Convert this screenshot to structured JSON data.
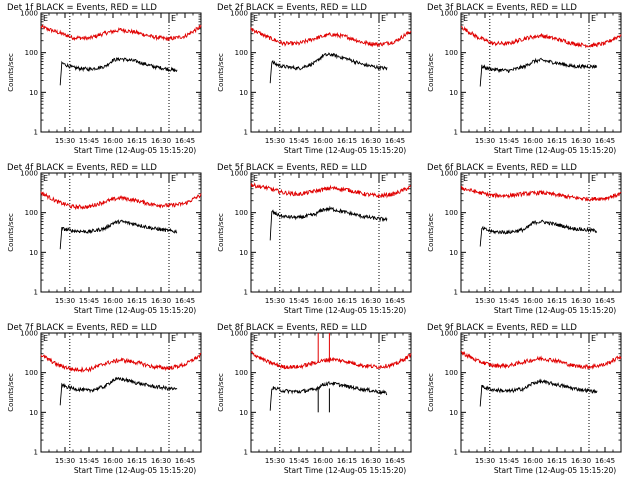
{
  "colors": {
    "events": "#000000",
    "lld": "#e00000",
    "axes": "#000000",
    "marker": "#000000"
  },
  "chart_data": [
    {
      "type": "line",
      "title": "Det 1f BLACK = Events, RED = LLD",
      "xlabel": "Start Time (12-Aug-05 15:15:20)",
      "ylabel": "Counts/sec",
      "yscale": "log",
      "ylim": [
        1,
        1000
      ],
      "xlim": [
        "15:15",
        "16:55"
      ],
      "x_ticks": [
        "15:30",
        "15:45",
        "16:00",
        "16:15",
        "16:30",
        "16:45"
      ],
      "y_ticks": [
        "1",
        "10",
        "100",
        "1000"
      ],
      "markers": [
        {
          "label": "E",
          "x": "15:15"
        },
        {
          "label": "E",
          "x": "16:35"
        }
      ],
      "vlines": [
        "15:33",
        "16:35"
      ],
      "series": [
        {
          "color": "red",
          "x": [
            "15:15",
            "15:25",
            "15:35",
            "15:45",
            "15:55",
            "16:05",
            "16:15",
            "16:25",
            "16:35",
            "16:45",
            "16:55"
          ],
          "y": [
            450,
            330,
            240,
            230,
            310,
            380,
            320,
            250,
            220,
            260,
            450
          ]
        },
        {
          "color": "black",
          "x": [
            "15:27",
            "15:28",
            "15:30",
            "15:35",
            "15:45",
            "15:55",
            "16:00",
            "16:05",
            "16:15",
            "16:25",
            "16:35",
            "16:40"
          ],
          "y": [
            15,
            55,
            50,
            42,
            38,
            45,
            65,
            70,
            60,
            45,
            38,
            35
          ]
        }
      ]
    },
    {
      "type": "line",
      "title": "Det 2f BLACK = Events, RED = LLD",
      "xlabel": "Start Time (12-Aug-05 15:15:20)",
      "ylabel": "Counts/sec",
      "yscale": "log",
      "ylim": [
        1,
        1000
      ],
      "xlim": [
        "15:15",
        "16:55"
      ],
      "x_ticks": [
        "15:30",
        "15:45",
        "16:00",
        "16:15",
        "16:30",
        "16:45"
      ],
      "y_ticks": [
        "1",
        "10",
        "100",
        "1000"
      ],
      "markers": [
        {
          "label": "E",
          "x": "15:15"
        },
        {
          "label": "E",
          "x": "16:35"
        }
      ],
      "vlines": [
        "15:33",
        "16:35"
      ],
      "series": [
        {
          "color": "red",
          "x": [
            "15:15",
            "15:25",
            "15:35",
            "15:45",
            "15:55",
            "16:05",
            "16:15",
            "16:25",
            "16:35",
            "16:45",
            "16:55"
          ],
          "y": [
            400,
            250,
            170,
            170,
            230,
            290,
            250,
            180,
            160,
            190,
            350
          ]
        },
        {
          "color": "black",
          "x": [
            "15:27",
            "15:28",
            "15:30",
            "15:35",
            "15:45",
            "15:55",
            "16:00",
            "16:05",
            "16:15",
            "16:25",
            "16:35",
            "16:40"
          ],
          "y": [
            17,
            60,
            52,
            45,
            40,
            55,
            85,
            90,
            70,
            50,
            42,
            40
          ]
        }
      ]
    },
    {
      "type": "line",
      "title": "Det 3f BLACK = Events, RED = LLD",
      "xlabel": "Start Time (12-Aug-05 15:15:20)",
      "ylabel": "Counts/sec",
      "yscale": "log",
      "ylim": [
        1,
        1000
      ],
      "xlim": [
        "15:15",
        "16:55"
      ],
      "x_ticks": [
        "15:30",
        "15:45",
        "16:00",
        "16:15",
        "16:30",
        "16:45"
      ],
      "y_ticks": [
        "1",
        "10",
        "100",
        "1000"
      ],
      "markers": [
        {
          "label": "E",
          "x": "15:15"
        },
        {
          "label": "E",
          "x": "16:35"
        }
      ],
      "vlines": [
        "15:33",
        "16:35"
      ],
      "series": [
        {
          "color": "red",
          "x": [
            "15:15",
            "15:25",
            "15:35",
            "15:45",
            "15:55",
            "16:05",
            "16:15",
            "16:25",
            "16:35",
            "16:45",
            "16:55"
          ],
          "y": [
            450,
            250,
            170,
            170,
            230,
            270,
            220,
            170,
            150,
            170,
            280
          ]
        },
        {
          "color": "black",
          "x": [
            "15:27",
            "15:28",
            "15:30",
            "15:35",
            "15:45",
            "15:55",
            "16:00",
            "16:05",
            "16:15",
            "16:25",
            "16:35",
            "16:40"
          ],
          "y": [
            14,
            45,
            42,
            38,
            35,
            45,
            60,
            65,
            55,
            45,
            45,
            45
          ]
        }
      ]
    },
    {
      "type": "line",
      "title": "Det 4f BLACK = Events, RED = LLD",
      "xlabel": "Start Time (12-Aug-05 15:15:20)",
      "ylabel": "Counts/sec",
      "yscale": "log",
      "ylim": [
        1,
        1000
      ],
      "xlim": [
        "15:15",
        "16:55"
      ],
      "x_ticks": [
        "15:30",
        "15:45",
        "16:00",
        "16:15",
        "16:30",
        "16:45"
      ],
      "y_ticks": [
        "1",
        "10",
        "100",
        "1000"
      ],
      "markers": [
        {
          "label": "E",
          "x": "15:15"
        },
        {
          "label": "E",
          "x": "16:35"
        }
      ],
      "vlines": [
        "15:33",
        "16:35"
      ],
      "series": [
        {
          "color": "red",
          "x": [
            "15:15",
            "15:25",
            "15:35",
            "15:45",
            "15:55",
            "16:05",
            "16:15",
            "16:25",
            "16:35",
            "16:45",
            "16:55"
          ],
          "y": [
            320,
            190,
            140,
            140,
            190,
            240,
            200,
            160,
            150,
            170,
            280
          ]
        },
        {
          "color": "black",
          "x": [
            "15:27",
            "15:28",
            "15:30",
            "15:35",
            "15:45",
            "15:55",
            "16:00",
            "16:05",
            "16:15",
            "16:25",
            "16:35",
            "16:40"
          ],
          "y": [
            12,
            40,
            38,
            35,
            33,
            40,
            55,
            60,
            50,
            40,
            35,
            33
          ]
        }
      ]
    },
    {
      "type": "line",
      "title": "Det 5f BLACK = Events, RED = LLD",
      "xlabel": "Start Time (12-Aug-05 15:15:20)",
      "ylabel": "Counts/sec",
      "yscale": "log",
      "ylim": [
        1,
        1000
      ],
      "xlim": [
        "15:15",
        "16:55"
      ],
      "x_ticks": [
        "15:30",
        "15:45",
        "16:00",
        "16:15",
        "16:30",
        "16:45"
      ],
      "y_ticks": [
        "1",
        "10",
        "100",
        "1000"
      ],
      "markers": [
        {
          "label": "E",
          "x": "15:15"
        },
        {
          "label": "E",
          "x": "16:35"
        }
      ],
      "vlines": [
        "15:33",
        "16:35"
      ],
      "series": [
        {
          "color": "red",
          "x": [
            "15:15",
            "15:25",
            "15:35",
            "15:45",
            "15:55",
            "16:05",
            "16:15",
            "16:25",
            "16:35",
            "16:45",
            "16:55"
          ],
          "y": [
            500,
            420,
            320,
            290,
            350,
            420,
            380,
            300,
            260,
            300,
            450
          ]
        },
        {
          "color": "black",
          "x": [
            "15:27",
            "15:28",
            "15:30",
            "15:35",
            "15:45",
            "15:55",
            "16:00",
            "16:05",
            "16:15",
            "16:25",
            "16:35",
            "16:40"
          ],
          "y": [
            20,
            110,
            95,
            80,
            75,
            90,
            120,
            125,
            100,
            80,
            70,
            68
          ]
        }
      ]
    },
    {
      "type": "line",
      "title": "Det 6f BLACK = Events, RED = LLD",
      "xlabel": "Start Time (12-Aug-05 15:15:20)",
      "ylabel": "Counts/sec",
      "yscale": "log",
      "ylim": [
        1,
        1000
      ],
      "xlim": [
        "15:15",
        "16:55"
      ],
      "x_ticks": [
        "15:30",
        "15:45",
        "16:00",
        "16:15",
        "16:30",
        "16:45"
      ],
      "y_ticks": [
        "1",
        "10",
        "100",
        "1000"
      ],
      "markers": [
        {
          "label": "E",
          "x": "15:15"
        },
        {
          "label": "E",
          "x": "16:35"
        }
      ],
      "vlines": [
        "15:33",
        "16:35"
      ],
      "series": [
        {
          "color": "red",
          "x": [
            "15:15",
            "15:25",
            "15:35",
            "15:45",
            "15:55",
            "16:05",
            "16:15",
            "16:25",
            "16:35",
            "16:45",
            "16:55"
          ],
          "y": [
            420,
            330,
            270,
            270,
            300,
            320,
            280,
            240,
            220,
            230,
            300
          ]
        },
        {
          "color": "black",
          "x": [
            "15:27",
            "15:28",
            "15:30",
            "15:35",
            "15:45",
            "15:55",
            "16:00",
            "16:05",
            "16:15",
            "16:25",
            "16:35",
            "16:40"
          ],
          "y": [
            14,
            40,
            38,
            33,
            32,
            38,
            55,
            60,
            50,
            40,
            36,
            35
          ]
        }
      ]
    },
    {
      "type": "line",
      "title": "Det 7f BLACK = Events, RED = LLD",
      "xlabel": "Start Time (12-Aug-05 15:15:20)",
      "ylabel": "Counts/sec",
      "yscale": "log",
      "ylim": [
        1,
        1000
      ],
      "xlim": [
        "15:15",
        "16:55"
      ],
      "x_ticks": [
        "15:30",
        "15:45",
        "16:00",
        "16:15",
        "16:30",
        "16:45"
      ],
      "y_ticks": [
        "1",
        "10",
        "100",
        "1000"
      ],
      "markers": [
        {
          "label": "E",
          "x": "15:15"
        },
        {
          "label": "E",
          "x": "16:35"
        }
      ],
      "vlines": [
        "15:33",
        "16:35"
      ],
      "series": [
        {
          "color": "red",
          "x": [
            "15:15",
            "15:25",
            "15:35",
            "15:45",
            "15:55",
            "16:05",
            "16:15",
            "16:25",
            "16:35",
            "16:45",
            "16:55"
          ],
          "y": [
            280,
            160,
            120,
            120,
            170,
            210,
            180,
            140,
            130,
            160,
            280
          ]
        },
        {
          "color": "black",
          "x": [
            "15:27",
            "15:28",
            "15:30",
            "15:35",
            "15:45",
            "15:55",
            "16:00",
            "16:05",
            "16:15",
            "16:25",
            "16:35",
            "16:40"
          ],
          "y": [
            15,
            50,
            45,
            40,
            35,
            45,
            65,
            70,
            55,
            45,
            40,
            38
          ]
        }
      ]
    },
    {
      "type": "line",
      "title": "Det 8f BLACK = Events, RED = LLD",
      "xlabel": "Start Time (12-Aug-05 15:15:20)",
      "ylabel": "Counts/sec",
      "yscale": "log",
      "ylim": [
        1,
        1000
      ],
      "xlim": [
        "15:15",
        "16:55"
      ],
      "x_ticks": [
        "15:30",
        "15:45",
        "16:00",
        "16:15",
        "16:30",
        "16:45"
      ],
      "y_ticks": [
        "1",
        "10",
        "100",
        "1000"
      ],
      "markers": [
        {
          "label": "E",
          "x": "15:15"
        },
        {
          "label": "E",
          "x": "16:35"
        }
      ],
      "vlines": [
        "15:33",
        "16:35"
      ],
      "spikes": [
        {
          "x": "15:57",
          "y": 1000
        },
        {
          "x": "16:04",
          "y": 1000
        }
      ],
      "series": [
        {
          "color": "red",
          "x": [
            "15:15",
            "15:25",
            "15:35",
            "15:45",
            "15:55",
            "16:05",
            "16:15",
            "16:25",
            "16:35",
            "16:45",
            "16:55"
          ],
          "y": [
            320,
            190,
            140,
            140,
            180,
            220,
            190,
            150,
            140,
            160,
            280
          ]
        },
        {
          "color": "black",
          "x": [
            "15:27",
            "15:28",
            "15:30",
            "15:35",
            "15:45",
            "15:55",
            "16:00",
            "16:05",
            "16:15",
            "16:25",
            "16:35",
            "16:40"
          ],
          "y": [
            11,
            42,
            40,
            35,
            33,
            38,
            50,
            55,
            45,
            38,
            33,
            30
          ]
        }
      ]
    },
    {
      "type": "line",
      "title": "Det 9f BLACK = Events, RED = LLD",
      "xlabel": "Start Time (12-Aug-05 15:15:20)",
      "ylabel": "Counts/sec",
      "yscale": "log",
      "ylim": [
        1,
        1000
      ],
      "xlim": [
        "15:15",
        "16:55"
      ],
      "x_ticks": [
        "15:30",
        "15:45",
        "16:00",
        "16:15",
        "16:30",
        "16:45"
      ],
      "y_ticks": [
        "1",
        "10",
        "100",
        "1000"
      ],
      "markers": [
        {
          "label": "E",
          "x": "15:15"
        },
        {
          "label": "E",
          "x": "16:35"
        }
      ],
      "vlines": [
        "15:33",
        "16:35"
      ],
      "series": [
        {
          "color": "red",
          "x": [
            "15:15",
            "15:25",
            "15:35",
            "15:45",
            "15:55",
            "16:05",
            "16:15",
            "16:25",
            "16:35",
            "16:45",
            "16:55"
          ],
          "y": [
            330,
            200,
            150,
            150,
            190,
            230,
            200,
            150,
            140,
            160,
            260
          ]
        },
        {
          "color": "black",
          "x": [
            "15:27",
            "15:28",
            "15:30",
            "15:35",
            "15:45",
            "15:55",
            "16:00",
            "16:05",
            "16:15",
            "16:25",
            "16:35",
            "16:40"
          ],
          "y": [
            14,
            45,
            42,
            37,
            34,
            40,
            55,
            60,
            50,
            40,
            35,
            33
          ]
        }
      ]
    }
  ]
}
